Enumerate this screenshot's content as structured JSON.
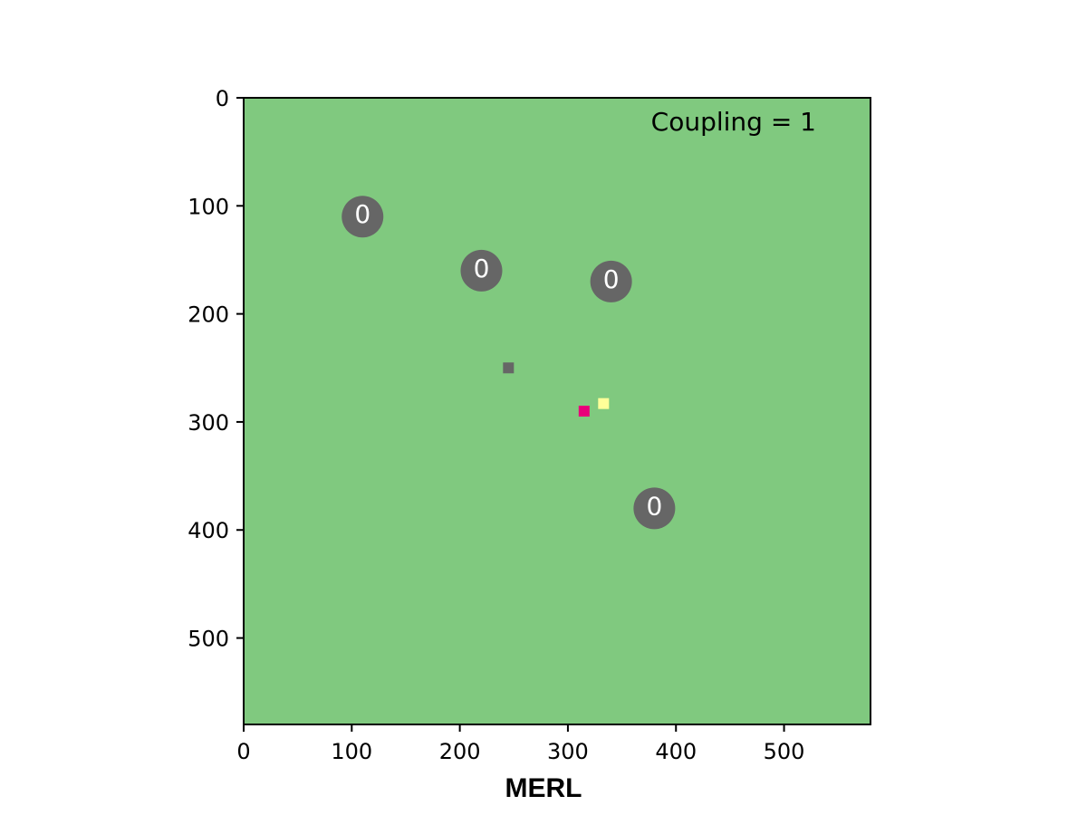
{
  "chart_data": {
    "type": "scatter",
    "title": "",
    "xlabel": "MERL",
    "ylabel": "",
    "xlim": [
      0,
      580
    ],
    "ylim": [
      580,
      0
    ],
    "y_inverted": true,
    "grid": false,
    "legend": "none",
    "background_color": "#80c97f",
    "x_ticks": [
      0,
      100,
      200,
      300,
      400,
      500
    ],
    "y_ticks": [
      0,
      100,
      200,
      300,
      400,
      500
    ],
    "annotation": "Coupling = 1",
    "series": [
      {
        "marker": "circle",
        "color": "#666666",
        "points": [
          {
            "x": 110,
            "y": 110,
            "label": "0"
          },
          {
            "x": 220,
            "y": 160,
            "label": "0"
          },
          {
            "x": 340,
            "y": 170,
            "label": "0"
          },
          {
            "x": 380,
            "y": 380,
            "label": "0"
          }
        ]
      },
      {
        "marker": "square",
        "color": "#666666",
        "points": [
          {
            "x": 245,
            "y": 250
          }
        ]
      },
      {
        "marker": "square",
        "color": "#e8007a",
        "points": [
          {
            "x": 315,
            "y": 290
          }
        ]
      },
      {
        "marker": "square",
        "color": "#ffff99",
        "points": [
          {
            "x": 333,
            "y": 283
          }
        ]
      }
    ]
  }
}
